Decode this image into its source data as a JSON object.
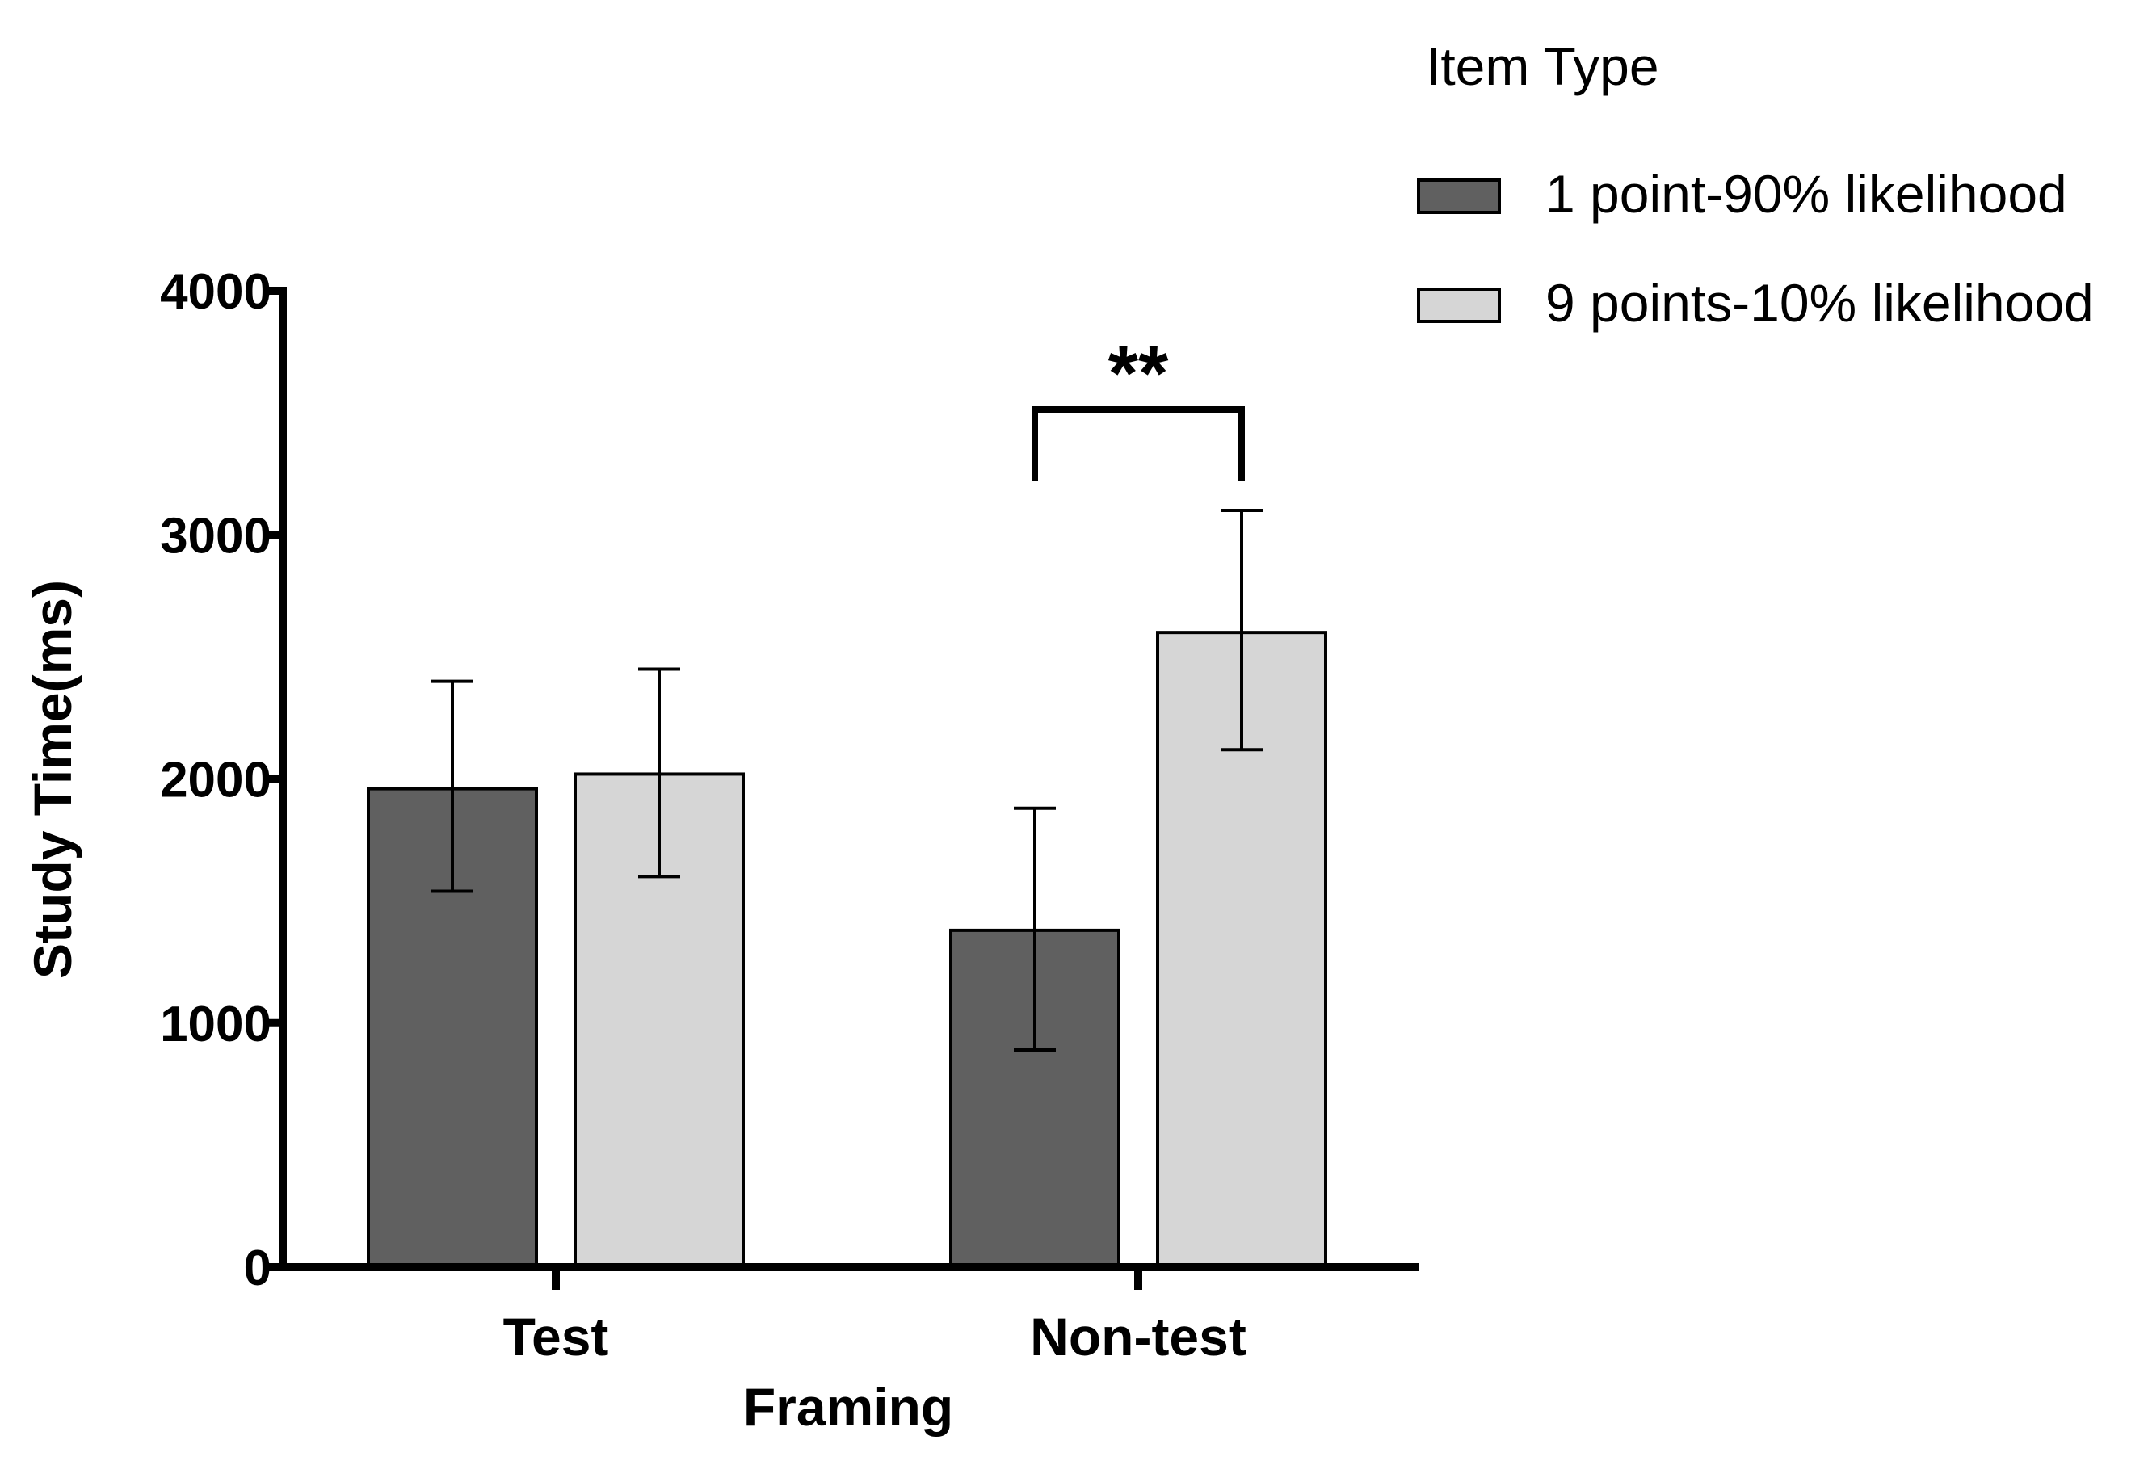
{
  "chart_data": {
    "type": "bar",
    "title": "",
    "xlabel": "Framing",
    "ylabel": "Study Time(ms)",
    "ylim": [
      0,
      4000
    ],
    "yticks": [
      0,
      1000,
      2000,
      3000,
      4000
    ],
    "categories": [
      "Test",
      "Non-test"
    ],
    "legend_title": "Item Type",
    "legend_position": "top-right",
    "series": [
      {
        "name": "1 point-90% likelihood",
        "color": "#606060",
        "values": [
          1960,
          1380
        ],
        "error_lower": [
          1540,
          890
        ],
        "error_upper": [
          2400,
          1880
        ]
      },
      {
        "name": "9 points-10% likelihood",
        "color": "#d6d6d6",
        "values": [
          2020,
          2600
        ],
        "error_lower": [
          1600,
          2120
        ],
        "error_upper": [
          2450,
          3100
        ]
      }
    ],
    "annotations": [
      {
        "text": "**",
        "category": "Non-test",
        "between_series": [
          0,
          1
        ]
      }
    ]
  }
}
